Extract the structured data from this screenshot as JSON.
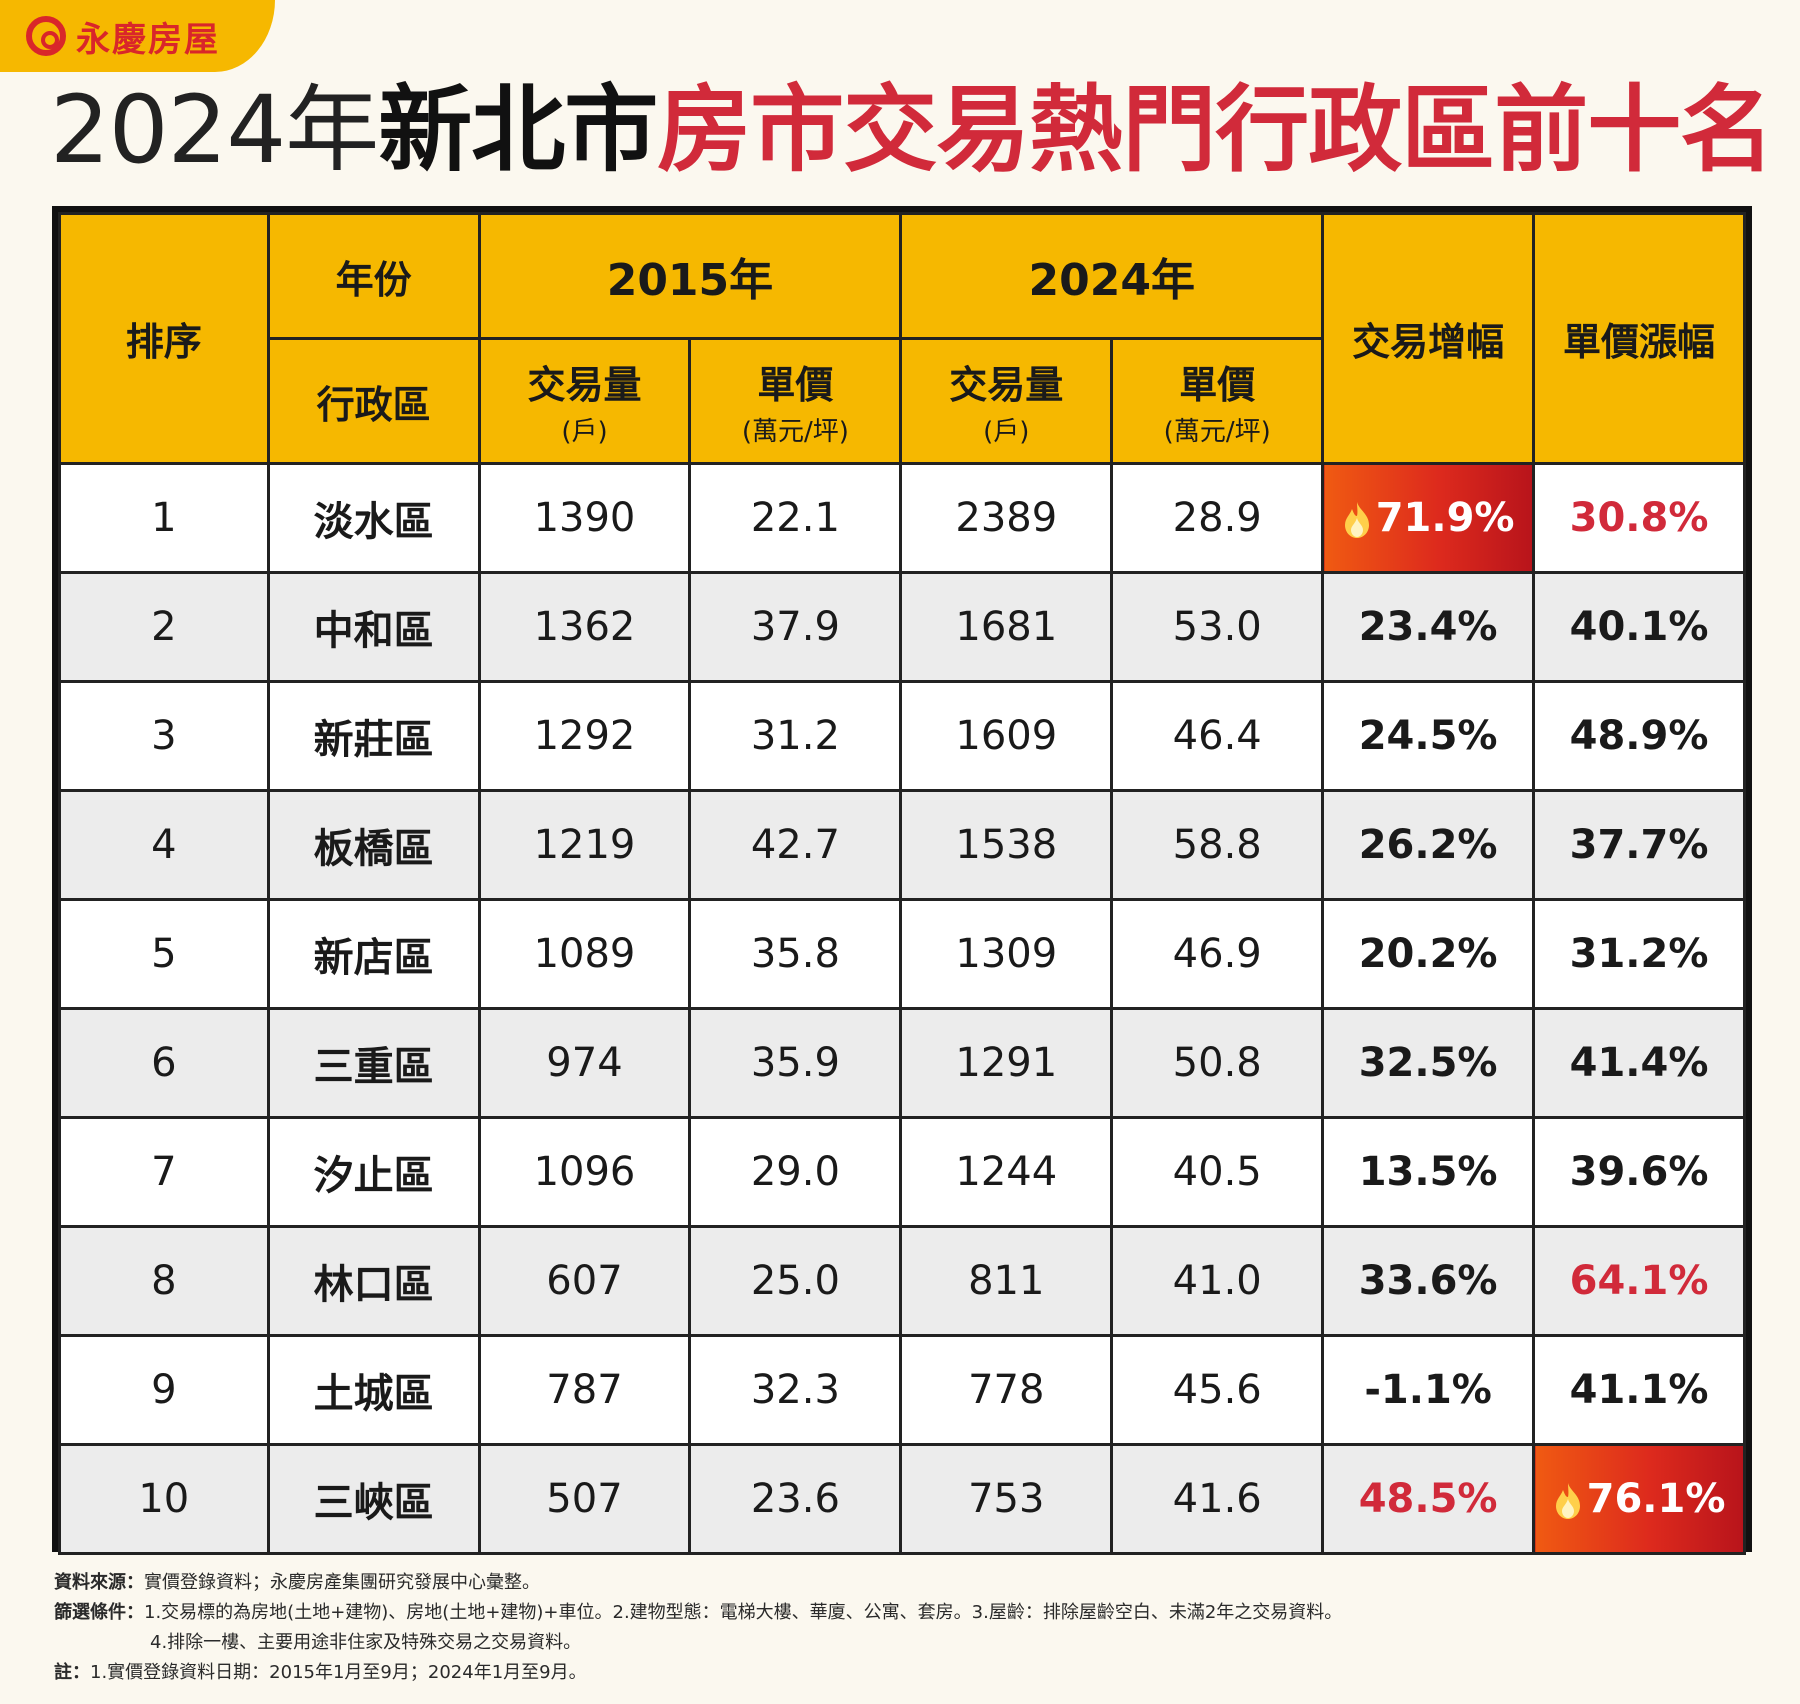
{
  "brand": {
    "name": "永慶房屋"
  },
  "title": {
    "year": "2024年",
    "city": "新北市",
    "rest": "房市交易熱門行政區前十名"
  },
  "colors": {
    "gold": "#f6b800",
    "red": "#d12a3a",
    "hot": "#dd2a1d"
  },
  "headers": {
    "rank": "排序",
    "year_label": "年份",
    "district_label": "行政區",
    "y2015": "2015年",
    "y2024": "2024年",
    "volume": "交易量",
    "volume_unit": "(戶)",
    "price": "單價",
    "price_unit": "(萬元/坪)",
    "volume_growth": "交易增幅",
    "price_growth": "單價漲幅"
  },
  "chart_data": {
    "type": "table",
    "title": "2024年新北市房市交易熱門行政區前十名",
    "columns": [
      "排序",
      "行政區",
      "2015年 交易量(戶)",
      "2015年 單價(萬元/坪)",
      "2024年 交易量(戶)",
      "2024年 單價(萬元/坪)",
      "交易增幅",
      "單價漲幅"
    ],
    "rows": [
      {
        "rank": "1",
        "district": "淡水區",
        "vol2015": "1390",
        "price2015": "22.1",
        "vol2024": "2389",
        "price2024": "28.9",
        "vol_growth": "71.9%",
        "price_growth": "30.8%"
      },
      {
        "rank": "2",
        "district": "中和區",
        "vol2015": "1362",
        "price2015": "37.9",
        "vol2024": "1681",
        "price2024": "53.0",
        "vol_growth": "23.4%",
        "price_growth": "40.1%"
      },
      {
        "rank": "3",
        "district": "新莊區",
        "vol2015": "1292",
        "price2015": "31.2",
        "vol2024": "1609",
        "price2024": "46.4",
        "vol_growth": "24.5%",
        "price_growth": "48.9%"
      },
      {
        "rank": "4",
        "district": "板橋區",
        "vol2015": "1219",
        "price2015": "42.7",
        "vol2024": "1538",
        "price2024": "58.8",
        "vol_growth": "26.2%",
        "price_growth": "37.7%"
      },
      {
        "rank": "5",
        "district": "新店區",
        "vol2015": "1089",
        "price2015": "35.8",
        "vol2024": "1309",
        "price2024": "46.9",
        "vol_growth": "20.2%",
        "price_growth": "31.2%"
      },
      {
        "rank": "6",
        "district": "三重區",
        "vol2015": "974",
        "price2015": "35.9",
        "vol2024": "1291",
        "price2024": "50.8",
        "vol_growth": "32.5%",
        "price_growth": "41.4%"
      },
      {
        "rank": "7",
        "district": "汐止區",
        "vol2015": "1096",
        "price2015": "29.0",
        "vol2024": "1244",
        "price2024": "40.5",
        "vol_growth": "13.5%",
        "price_growth": "39.6%"
      },
      {
        "rank": "8",
        "district": "林口區",
        "vol2015": "607",
        "price2015": "25.0",
        "vol2024": "811",
        "price2024": "41.0",
        "vol_growth": "33.6%",
        "price_growth": "64.1%"
      },
      {
        "rank": "9",
        "district": "土城區",
        "vol2015": "787",
        "price2015": "32.3",
        "vol2024": "778",
        "price2024": "45.6",
        "vol_growth": "-1.1%",
        "price_growth": "41.1%"
      },
      {
        "rank": "10",
        "district": "三峽區",
        "vol2015": "507",
        "price2015": "23.6",
        "vol2024": "753",
        "price2024": "41.6",
        "vol_growth": "48.5%",
        "price_growth": "76.1%"
      }
    ],
    "highlights": {
      "hot": [
        {
          "row": 0,
          "col": "vol_growth"
        },
        {
          "row": 9,
          "col": "price_growth"
        }
      ],
      "red": [
        {
          "row": 0,
          "col": "price_growth"
        },
        {
          "row": 7,
          "col": "price_growth"
        },
        {
          "row": 9,
          "col": "vol_growth"
        }
      ]
    }
  },
  "notes": {
    "source_label": "資料來源：",
    "source_text": "實價登錄資料；永慶房產集團研究發展中心彙整。",
    "filter_label": "篩選條件：",
    "filter_text_1": "1.交易標的為房地(土地+建物)、房地(土地+建物)+車位。2.建物型態：電梯大樓、華廈、公寓、套房。3.屋齡：排除屋齡空白、未滿2年之交易資料。",
    "filter_text_2": "4.排除一樓、主要用途非住家及特殊交易之交易資料。",
    "note_label": "註：",
    "note_text": "1.實價登錄資料日期：2015年1月至9月；2024年1月至9月。"
  }
}
